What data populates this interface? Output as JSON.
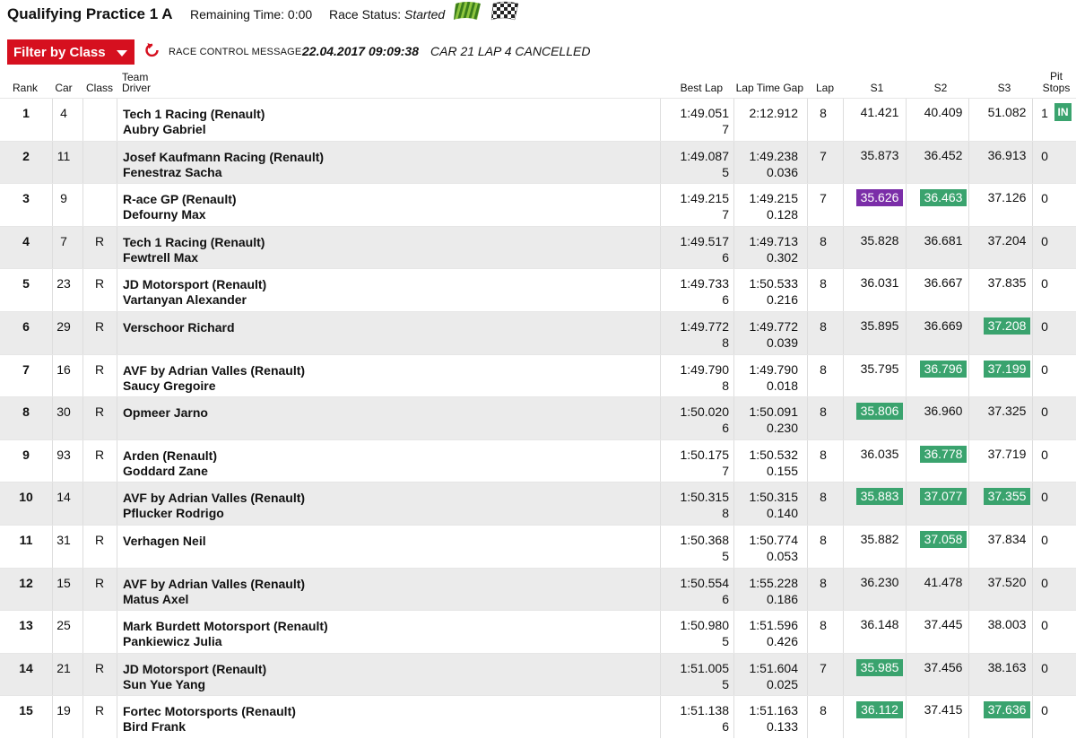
{
  "header": {
    "title": "Qualifying Practice 1 A",
    "remaining_label": "Remaining Time: 0:00",
    "race_status_label": "Race Status:",
    "race_status_value": "Started"
  },
  "toolbar": {
    "filter_label": "Filter by Class",
    "rcm_label": "RACE CONTROL MESSAGE:",
    "rcm_time": "22.04.2017 09:09:38",
    "rcm_text": "CAR 21 LAP 4 CANCELLED"
  },
  "columns": {
    "rank": "Rank",
    "car": "Car",
    "class": "Class",
    "team": "Team",
    "driver": "Driver",
    "best_lap": "Best Lap",
    "gap": "Lap Time Gap",
    "lap": "Lap",
    "s1": "S1",
    "s2": "S2",
    "s3": "S3",
    "pit1": "Pit",
    "pit2": "Stops"
  },
  "colors": {
    "accent": "#d6101f",
    "best_sector": "#3aa36e",
    "overall_best": "#7b2ea8"
  },
  "rows": [
    {
      "rank": "1",
      "car": "4",
      "cls": "",
      "team": "Tech 1 Racing (Renault)",
      "driver": "Aubry Gabriel",
      "best": "1:49.051",
      "bestlap": "7",
      "gap": "2:12.912",
      "diff": "",
      "lap": "8",
      "s1": "41.421",
      "s2": "40.409",
      "s3": "51.082",
      "s1h": "",
      "s2h": "",
      "s3h": "",
      "pit": "1",
      "pit_in": "IN"
    },
    {
      "rank": "2",
      "car": "11",
      "cls": "",
      "team": "Josef Kaufmann Racing (Renault)",
      "driver": "Fenestraz Sacha",
      "best": "1:49.087",
      "bestlap": "5",
      "gap": "1:49.238",
      "diff": "0.036",
      "lap": "7",
      "s1": "35.873",
      "s2": "36.452",
      "s3": "36.913",
      "s1h": "",
      "s2h": "",
      "s3h": "",
      "pit": "0",
      "pit_in": ""
    },
    {
      "rank": "3",
      "car": "9",
      "cls": "",
      "team": "R-ace GP (Renault)",
      "driver": "Defourny Max",
      "best": "1:49.215",
      "bestlap": "7",
      "gap": "1:49.215",
      "diff": "0.128",
      "lap": "7",
      "s1": "35.626",
      "s2": "36.463",
      "s3": "37.126",
      "s1h": "ob",
      "s2h": "best",
      "s3h": "",
      "pit": "0",
      "pit_in": ""
    },
    {
      "rank": "4",
      "car": "7",
      "cls": "R",
      "team": "Tech 1 Racing (Renault)",
      "driver": "Fewtrell Max",
      "best": "1:49.517",
      "bestlap": "6",
      "gap": "1:49.713",
      "diff": "0.302",
      "lap": "8",
      "s1": "35.828",
      "s2": "36.681",
      "s3": "37.204",
      "s1h": "",
      "s2h": "",
      "s3h": "",
      "pit": "0",
      "pit_in": ""
    },
    {
      "rank": "5",
      "car": "23",
      "cls": "R",
      "team": "JD Motorsport (Renault)",
      "driver": "Vartanyan Alexander",
      "best": "1:49.733",
      "bestlap": "6",
      "gap": "1:50.533",
      "diff": "0.216",
      "lap": "8",
      "s1": "36.031",
      "s2": "36.667",
      "s3": "37.835",
      "s1h": "",
      "s2h": "",
      "s3h": "",
      "pit": "0",
      "pit_in": ""
    },
    {
      "rank": "6",
      "car": "29",
      "cls": "R",
      "team": "Verschoor Richard",
      "driver": "",
      "best": "1:49.772",
      "bestlap": "8",
      "gap": "1:49.772",
      "diff": "0.039",
      "lap": "8",
      "s1": "35.895",
      "s2": "36.669",
      "s3": "37.208",
      "s1h": "",
      "s2h": "",
      "s3h": "best",
      "pit": "0",
      "pit_in": ""
    },
    {
      "rank": "7",
      "car": "16",
      "cls": "R",
      "team": "AVF by Adrian Valles (Renault)",
      "driver": "Saucy Gregoire",
      "best": "1:49.790",
      "bestlap": "8",
      "gap": "1:49.790",
      "diff": "0.018",
      "lap": "8",
      "s1": "35.795",
      "s2": "36.796",
      "s3": "37.199",
      "s1h": "",
      "s2h": "best",
      "s3h": "best",
      "pit": "0",
      "pit_in": ""
    },
    {
      "rank": "8",
      "car": "30",
      "cls": "R",
      "team": "Opmeer Jarno",
      "driver": "",
      "best": "1:50.020",
      "bestlap": "6",
      "gap": "1:50.091",
      "diff": "0.230",
      "lap": "8",
      "s1": "35.806",
      "s2": "36.960",
      "s3": "37.325",
      "s1h": "best",
      "s2h": "",
      "s3h": "",
      "pit": "0",
      "pit_in": ""
    },
    {
      "rank": "9",
      "car": "93",
      "cls": "R",
      "team": "Arden (Renault)",
      "driver": "Goddard Zane",
      "best": "1:50.175",
      "bestlap": "7",
      "gap": "1:50.532",
      "diff": "0.155",
      "lap": "8",
      "s1": "36.035",
      "s2": "36.778",
      "s3": "37.719",
      "s1h": "",
      "s2h": "best",
      "s3h": "",
      "pit": "0",
      "pit_in": ""
    },
    {
      "rank": "10",
      "car": "14",
      "cls": "",
      "team": "AVF by Adrian Valles (Renault)",
      "driver": "Pflucker Rodrigo",
      "best": "1:50.315",
      "bestlap": "8",
      "gap": "1:50.315",
      "diff": "0.140",
      "lap": "8",
      "s1": "35.883",
      "s2": "37.077",
      "s3": "37.355",
      "s1h": "best",
      "s2h": "best",
      "s3h": "best",
      "pit": "0",
      "pit_in": ""
    },
    {
      "rank": "11",
      "car": "31",
      "cls": "R",
      "team": "Verhagen Neil",
      "driver": "",
      "best": "1:50.368",
      "bestlap": "5",
      "gap": "1:50.774",
      "diff": "0.053",
      "lap": "8",
      "s1": "35.882",
      "s2": "37.058",
      "s3": "37.834",
      "s1h": "",
      "s2h": "best",
      "s3h": "",
      "pit": "0",
      "pit_in": ""
    },
    {
      "rank": "12",
      "car": "15",
      "cls": "R",
      "team": "AVF by Adrian Valles (Renault)",
      "driver": "Matus Axel",
      "best": "1:50.554",
      "bestlap": "6",
      "gap": "1:55.228",
      "diff": "0.186",
      "lap": "8",
      "s1": "36.230",
      "s2": "41.478",
      "s3": "37.520",
      "s1h": "",
      "s2h": "",
      "s3h": "",
      "pit": "0",
      "pit_in": ""
    },
    {
      "rank": "13",
      "car": "25",
      "cls": "",
      "team": "Mark Burdett Motorsport (Renault)",
      "driver": "Pankiewicz Julia",
      "best": "1:50.980",
      "bestlap": "5",
      "gap": "1:51.596",
      "diff": "0.426",
      "lap": "8",
      "s1": "36.148",
      "s2": "37.445",
      "s3": "38.003",
      "s1h": "",
      "s2h": "",
      "s3h": "",
      "pit": "0",
      "pit_in": ""
    },
    {
      "rank": "14",
      "car": "21",
      "cls": "R",
      "team": "JD Motorsport (Renault)",
      "driver": "Sun Yue Yang",
      "best": "1:51.005",
      "bestlap": "5",
      "gap": "1:51.604",
      "diff": "0.025",
      "lap": "7",
      "s1": "35.985",
      "s2": "37.456",
      "s3": "38.163",
      "s1h": "best",
      "s2h": "",
      "s3h": "",
      "pit": "0",
      "pit_in": ""
    },
    {
      "rank": "15",
      "car": "19",
      "cls": "R",
      "team": "Fortec Motorsports (Renault)",
      "driver": "Bird Frank",
      "best": "1:51.138",
      "bestlap": "6",
      "gap": "1:51.163",
      "diff": "0.133",
      "lap": "8",
      "s1": "36.112",
      "s2": "37.415",
      "s3": "37.636",
      "s1h": "best",
      "s2h": "",
      "s3h": "best",
      "pit": "0",
      "pit_in": ""
    }
  ]
}
